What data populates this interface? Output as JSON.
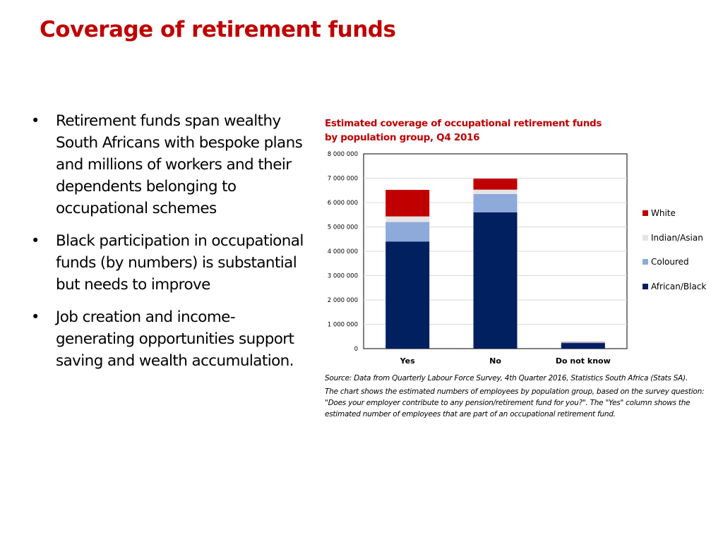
{
  "slide": {
    "title": "Coverage of retirement funds",
    "bullets": [
      "Retirement funds span wealthy South Africans with bespoke plans and millions of workers and their dependents belonging to occupational schemes",
      "Black participation in occupational funds (by numbers) is substantial but needs to improve",
      "Job creation and income-generating opportunities support saving and wealth accumulation."
    ],
    "bullet_symbol": "•",
    "source_text": "Source: Data from Quarterly Labour Force Survey, 4th Quarter 2016, Statistics South Africa (Stats SA).",
    "note_text": "The chart shows the estimated numbers of employees by population group, based on the survey question: \"Does your employer contribute to any pension/retirement fund for you?\".  The \"Yes\" column shows the estimated number of employees that are part of an occupational retirement fund."
  },
  "chart_data": {
    "type": "bar",
    "stacked": true,
    "title_lines": [
      "Estimated coverage of occupational  retirement funds",
      "by population  group, Q4 2016"
    ],
    "categories": [
      "Yes",
      "No",
      "Do not know"
    ],
    "series": [
      {
        "name": "African/Black",
        "color": "#002060",
        "values": [
          4400000,
          5600000,
          230000
        ]
      },
      {
        "name": "Coloured",
        "color": "#8eaadb",
        "values": [
          800000,
          750000,
          30000
        ]
      },
      {
        "name": "Indian/Asian",
        "color": "#e4e4e4",
        "values": [
          230000,
          180000,
          10000
        ]
      },
      {
        "name": "White",
        "color": "#c00000",
        "values": [
          1090000,
          450000,
          10000
        ]
      }
    ],
    "legend_order": [
      "White",
      "Indian/Asian",
      "Coloured",
      "African/Black"
    ],
    "legend_position": "right",
    "ylim": [
      0,
      8000000
    ],
    "yticks": [
      0,
      1000000,
      2000000,
      3000000,
      4000000,
      5000000,
      6000000,
      7000000,
      8000000
    ],
    "ytick_labels": [
      "0",
      "1 000 000",
      "2 000 000",
      "3 000 000",
      "4 000 000",
      "5 000 000",
      "6 000 000",
      "7 000 000",
      "8 000 000"
    ],
    "grid": true,
    "xlabel": "",
    "ylabel": ""
  }
}
